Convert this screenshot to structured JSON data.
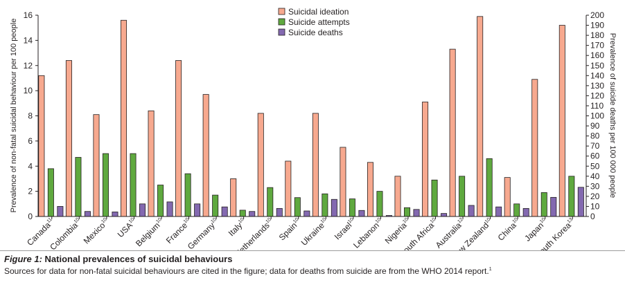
{
  "chart_data": {
    "type": "bar",
    "y_left_label": "Prevalence of non-fatal suicidal behaviour per 100 people",
    "y_right_label": "Prevalence of suicide deaths per 100 000 people",
    "y_left_range": [
      0,
      16
    ],
    "y_left_ticks": [
      "0",
      "2",
      "4",
      "6",
      "8",
      "10",
      "12",
      "14",
      "16"
    ],
    "y_right_range": [
      0,
      200
    ],
    "y_right_ticks": [
      "0",
      "10",
      "20",
      "30",
      "40",
      "50",
      "60",
      "70",
      "80",
      "90",
      "100",
      "110",
      "120",
      "130",
      "140",
      "150",
      "160",
      "170",
      "180",
      "190",
      "200"
    ],
    "grid": false,
    "legend_position": "top-center",
    "categories": [
      {
        "name": "Canada",
        "ref": "11"
      },
      {
        "name": "Colombia",
        "ref": "10"
      },
      {
        "name": "Mexico",
        "ref": "10"
      },
      {
        "name": "USA",
        "ref": "10"
      },
      {
        "name": "Belgium",
        "ref": "10"
      },
      {
        "name": "France",
        "ref": "10"
      },
      {
        "name": "Germany",
        "ref": "10"
      },
      {
        "name": "Italy",
        "ref": "10"
      },
      {
        "name": "Netherlands",
        "ref": "10"
      },
      {
        "name": "Spain",
        "ref": "10"
      },
      {
        "name": "Ukraine",
        "ref": "10"
      },
      {
        "name": "Israel",
        "ref": "10"
      },
      {
        "name": "Lebanon",
        "ref": "10"
      },
      {
        "name": "Nigeria",
        "ref": "10"
      },
      {
        "name": "South Africa",
        "ref": "10"
      },
      {
        "name": "Australia",
        "ref": "12"
      },
      {
        "name": "New Zealand",
        "ref": "10"
      },
      {
        "name": "China",
        "ref": "10"
      },
      {
        "name": "Japan",
        "ref": "10"
      },
      {
        "name": "South Korea",
        "ref": "13"
      }
    ],
    "series": [
      {
        "name": "Suicidal ideation",
        "axis": "left",
        "color": "#f7a98f",
        "values": [
          11.2,
          12.4,
          8.1,
          15.6,
          8.4,
          12.4,
          9.7,
          3.0,
          8.2,
          4.4,
          8.2,
          5.5,
          4.3,
          3.2,
          9.1,
          13.3,
          15.9,
          3.1,
          10.9,
          15.2
        ]
      },
      {
        "name": "Suicide attempts",
        "axis": "left",
        "color": "#5fa93f",
        "values": [
          3.8,
          4.7,
          5.0,
          5.0,
          2.5,
          3.4,
          1.7,
          0.5,
          2.3,
          1.5,
          1.8,
          1.4,
          2.0,
          0.7,
          2.9,
          3.2,
          4.6,
          1.0,
          1.9,
          3.2
        ]
      },
      {
        "name": "Suicide deaths",
        "axis": "right",
        "color": "#8369b0",
        "values": [
          10,
          5,
          4.5,
          12.5,
          14.5,
          12.5,
          9.5,
          5,
          8,
          5.5,
          17,
          6,
          1,
          7,
          3,
          11,
          9.5,
          8,
          19,
          29
        ]
      }
    ]
  },
  "caption": {
    "figure_label": "Figure 1:",
    "title": "National prevalences of suicidal behaviours",
    "note": "Sources for data for non-fatal suicidal behaviours are cited in the figure; data for deaths from suicide are from the WHO 2014 report.",
    "note_ref": "1"
  }
}
